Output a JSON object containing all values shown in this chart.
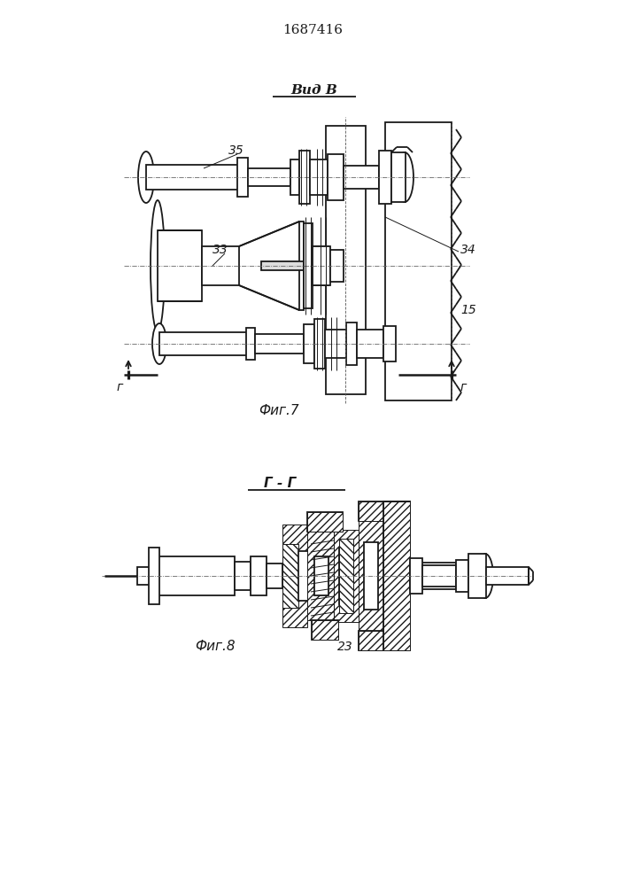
{
  "title_number": "1687416",
  "fig7_label": "Фиг.7",
  "fig8_label": "Фиг.8",
  "vid_label": "Вид В",
  "section_label": "Г - Г",
  "bg_color": "#ffffff",
  "line_color": "#1a1a1a"
}
